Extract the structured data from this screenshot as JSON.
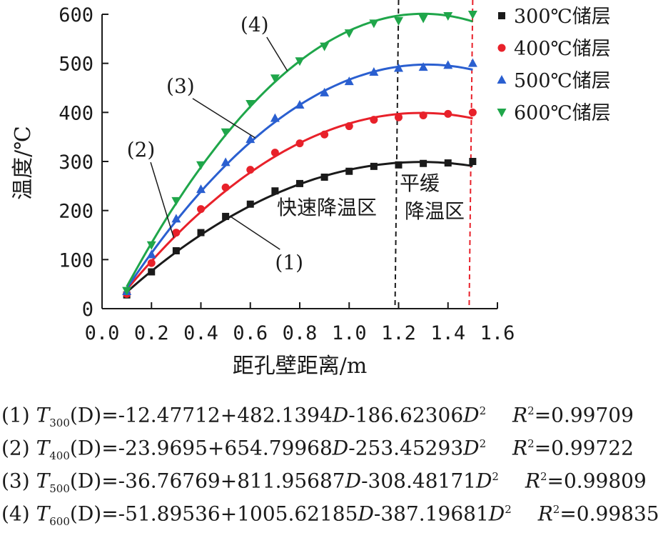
{
  "chart_data": {
    "type": "scatter",
    "ylabel": "温度/℃",
    "xlabel": "距孔壁距离/m",
    "xlim": [
      0.0,
      1.6
    ],
    "ylim": [
      0,
      600
    ],
    "x_ticks": [
      "0.0",
      "0.2",
      "0.4",
      "0.6",
      "0.8",
      "1.0",
      "1.2",
      "1.4",
      "1.6"
    ],
    "y_ticks": [
      "0",
      "100",
      "200",
      "300",
      "400",
      "500",
      "600"
    ],
    "legend_position": "top-right",
    "grid": false,
    "series": [
      {
        "name": "300℃储层",
        "color": "#1a1a1a",
        "marker": "square",
        "curve_label": "(1)",
        "fit": [
          -12.47712,
          482.1394,
          -186.62306
        ],
        "x": [
          0.1,
          0.2,
          0.3,
          0.4,
          0.5,
          0.6,
          0.7,
          0.8,
          0.9,
          1.0,
          1.1,
          1.2,
          1.3,
          1.4,
          1.5
        ],
        "y": [
          28,
          75,
          118,
          155,
          188,
          213,
          240,
          255,
          268,
          280,
          290,
          293,
          296,
          297,
          300
        ]
      },
      {
        "name": "400℃储层",
        "color": "#e8212a",
        "marker": "circle",
        "curve_label": "(2)",
        "fit": [
          -23.9695,
          654.79968,
          -253.45293
        ],
        "x": [
          0.1,
          0.2,
          0.3,
          0.4,
          0.5,
          0.6,
          0.7,
          0.8,
          0.9,
          1.0,
          1.1,
          1.2,
          1.3,
          1.4,
          1.5
        ],
        "y": [
          30,
          93,
          155,
          203,
          247,
          283,
          318,
          337,
          355,
          372,
          385,
          390,
          394,
          397,
          400
        ]
      },
      {
        "name": "500℃储层",
        "color": "#2a5fd0",
        "marker": "triangle-up",
        "curve_label": "(3)",
        "fit": [
          -36.76769,
          811.95687,
          -308.48171
        ],
        "x": [
          0.1,
          0.2,
          0.3,
          0.4,
          0.5,
          0.6,
          0.7,
          0.8,
          0.9,
          1.0,
          1.1,
          1.2,
          1.3,
          1.4,
          1.5
        ],
        "y": [
          35,
          110,
          183,
          243,
          298,
          345,
          388,
          415,
          440,
          463,
          482,
          490,
          492,
          496,
          500
        ]
      },
      {
        "name": "600℃储层",
        "color": "#1fa64a",
        "marker": "triangle-down",
        "curve_label": "(4)",
        "fit": [
          -51.89536,
          1005.62185,
          -387.19681
        ],
        "x": [
          0.1,
          0.2,
          0.3,
          0.4,
          0.5,
          0.6,
          0.7,
          0.8,
          0.9,
          1.0,
          1.1,
          1.2,
          1.3,
          1.4,
          1.5
        ],
        "y": [
          37,
          130,
          220,
          293,
          360,
          418,
          470,
          505,
          535,
          562,
          582,
          587,
          592,
          597,
          600
        ]
      }
    ],
    "vertical_lines": [
      {
        "x": 1.2,
        "color": "#1a1a1a",
        "style": "dashed"
      },
      {
        "x": 1.5,
        "color": "#e8212a",
        "style": "dashed"
      }
    ],
    "region_labels": {
      "fast": "快速降温区",
      "slow_line1": "平缓",
      "slow_line2": "降温区"
    }
  },
  "equations": [
    {
      "idx": "(1)",
      "var": "T",
      "sub": "300",
      "arg": "(D)=",
      "body": "-12.47712+482.1394",
      "dvar": "D",
      "tail": "-186.62306",
      "d2": "D",
      "pow": "2",
      "rvar": "R",
      "rpow": "2",
      "rval": "=0.99709"
    },
    {
      "idx": "(2)",
      "var": "T",
      "sub": "400",
      "arg": "(D)=",
      "body": "-23.9695+654.79968",
      "dvar": "D",
      "tail": "-253.45293",
      "d2": "D",
      "pow": "2",
      "rvar": "R",
      "rpow": "2",
      "rval": "=0.99722"
    },
    {
      "idx": "(3)",
      "var": "T",
      "sub": "500",
      "arg": "(D)=",
      "body": "-36.76769+811.95687",
      "dvar": "D",
      "tail": "-308.48171",
      "d2": "D",
      "pow": "2",
      "rvar": "R",
      "rpow": "2",
      "rval": "=0.99809"
    },
    {
      "idx": "(4)",
      "var": "T",
      "sub": "600",
      "arg": "(D)=",
      "body": "-51.89536+1005.62185",
      "dvar": "D",
      "tail": "-387.19681",
      "d2": "D",
      "pow": "2",
      "rvar": "R",
      "rpow": "2",
      "rval": "=0.99835"
    }
  ]
}
